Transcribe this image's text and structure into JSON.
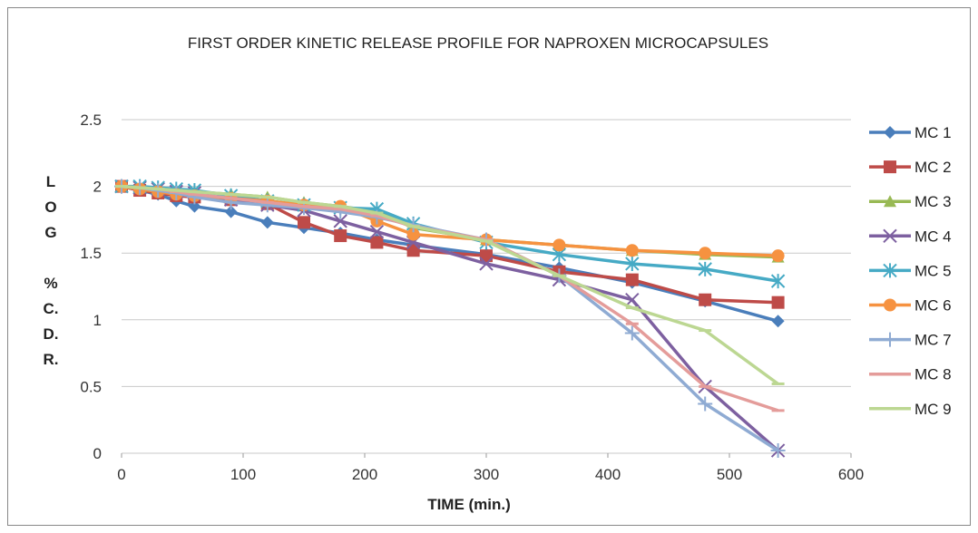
{
  "chart_data": {
    "type": "line",
    "title": "FIRST ORDER KINETIC RELEASE PROFILE FOR NAPROXEN MICROCAPSULES",
    "xlabel": "TIME (min.)",
    "ylabel_lines": [
      "L",
      "O",
      "G",
      "",
      "%",
      "C.",
      "D.",
      "R."
    ],
    "xlim": [
      0,
      600
    ],
    "ylim": [
      0,
      2.5
    ],
    "x_ticks": [
      0,
      100,
      200,
      300,
      400,
      500,
      600
    ],
    "y_ticks": [
      "0",
      "0.5",
      "1",
      "1.5",
      "2",
      "2.5"
    ],
    "grid": "horizontal",
    "legend_position": "right",
    "x": [
      0,
      15,
      30,
      45,
      60,
      90,
      120,
      150,
      180,
      210,
      240,
      300,
      360,
      420,
      480,
      540
    ],
    "series": [
      {
        "name": "MC 1",
        "color": "#4a7ebb",
        "marker": "diamond",
        "values": [
          2.0,
          1.97,
          1.94,
          1.89,
          1.85,
          1.81,
          1.73,
          1.69,
          1.65,
          1.6,
          1.56,
          1.49,
          1.39,
          1.28,
          1.14,
          0.99
        ]
      },
      {
        "name": "MC 2",
        "color": "#be4b48",
        "marker": "square",
        "values": [
          2.0,
          1.97,
          1.95,
          1.93,
          1.92,
          1.9,
          1.87,
          1.73,
          1.63,
          1.58,
          1.52,
          1.48,
          1.36,
          1.3,
          1.15,
          1.13
        ]
      },
      {
        "name": "MC 3",
        "color": "#98b954",
        "marker": "triangle",
        "values": [
          2.0,
          1.99,
          1.98,
          1.97,
          1.96,
          1.94,
          1.92,
          1.88,
          1.85,
          1.81,
          1.69,
          1.6,
          1.56,
          1.52,
          1.49,
          1.47
        ]
      },
      {
        "name": "MC 4",
        "color": "#7d60a0",
        "marker": "x",
        "values": [
          2.0,
          1.99,
          1.98,
          1.96,
          1.95,
          1.9,
          1.86,
          1.82,
          1.74,
          1.66,
          1.58,
          1.42,
          1.3,
          1.15,
          0.5,
          0.02
        ]
      },
      {
        "name": "MC 5",
        "color": "#46aac5",
        "marker": "asterisk",
        "values": [
          2.0,
          2.0,
          1.99,
          1.98,
          1.97,
          1.93,
          1.89,
          1.86,
          1.84,
          1.83,
          1.72,
          1.58,
          1.49,
          1.42,
          1.38,
          1.29
        ]
      },
      {
        "name": "MC 6",
        "color": "#f69240",
        "marker": "circle",
        "values": [
          2.0,
          1.98,
          1.96,
          1.94,
          1.93,
          1.91,
          1.89,
          1.86,
          1.85,
          1.74,
          1.64,
          1.6,
          1.56,
          1.52,
          1.5,
          1.48
        ]
      },
      {
        "name": "MC 7",
        "color": "#8fabd3",
        "marker": "plus",
        "values": [
          2.0,
          1.99,
          1.97,
          1.95,
          1.92,
          1.88,
          1.86,
          1.84,
          1.81,
          1.77,
          1.71,
          1.6,
          1.33,
          0.9,
          0.37,
          0.02
        ]
      },
      {
        "name": "MC 8",
        "color": "#e49c9a",
        "marker": "dash",
        "values": [
          2.0,
          1.99,
          1.98,
          1.96,
          1.94,
          1.91,
          1.88,
          1.85,
          1.83,
          1.78,
          1.7,
          1.6,
          1.33,
          0.97,
          0.5,
          0.32
        ]
      },
      {
        "name": "MC 9",
        "color": "#bcd792",
        "marker": "dash",
        "values": [
          2.0,
          1.99,
          1.98,
          1.97,
          1.96,
          1.94,
          1.92,
          1.88,
          1.85,
          1.8,
          1.7,
          1.59,
          1.33,
          1.09,
          0.92,
          0.52
        ]
      }
    ]
  }
}
